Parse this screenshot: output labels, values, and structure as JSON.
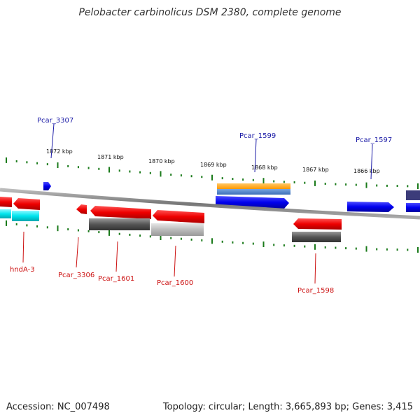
{
  "title": "Pelobacter carbinolicus DSM 2380, complete genome",
  "footer": {
    "accession": "Accession: NC_007498",
    "topology": "Topology: circular; Length: 3,665,893 bp; Genes: 3,415"
  },
  "ticks": [
    "1872 kbp",
    "1871 kbp",
    "1870 kbp",
    "1869 kbp",
    "1868 kbp",
    "1867 kbp",
    "1866 kbp"
  ],
  "labels": {
    "top": [
      "Pcar_3307",
      "Pcar_1599",
      "Pcar_1597"
    ],
    "bottom": [
      "hndA-3",
      "Pcar_3306",
      "Pcar_1601",
      "Pcar_1600",
      "Pcar_1598"
    ]
  },
  "colors": {
    "forward": "#0000ee",
    "reverse": "#ee0000",
    "orange": "#ff9900",
    "cyan": "#00e5ee",
    "gray": "#555555",
    "lightgray": "#bbbbbb",
    "tick": "#1a7a1a",
    "backbone": "#888888"
  }
}
